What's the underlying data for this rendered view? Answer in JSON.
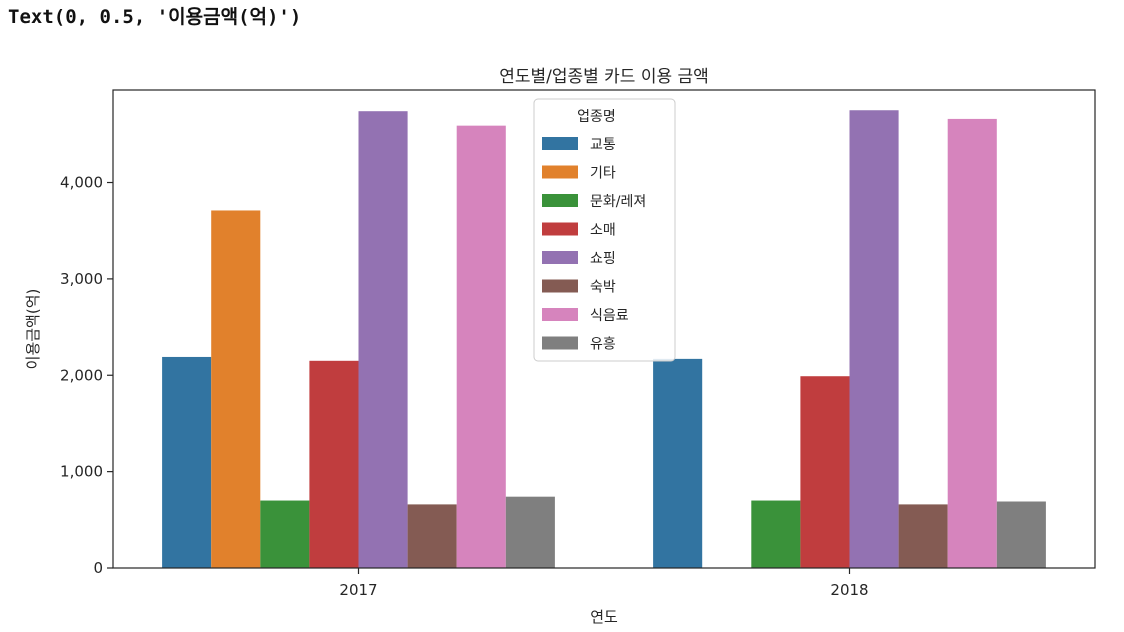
{
  "output": {
    "text": "Text(0, 0.5, '이용금액(억)')"
  },
  "chart_data": {
    "type": "bar",
    "title": "연도별/업종별 카드 이용 금액",
    "xlabel": "연도",
    "ylabel": "이용금액(억)",
    "categories": [
      "2017",
      "2018"
    ],
    "ylim": [
      0,
      4960
    ],
    "yticks": [
      0,
      1000,
      2000,
      3000,
      4000
    ],
    "ytick_labels": [
      "0",
      "1,000",
      "2,000",
      "3,000",
      "4,000"
    ],
    "legend_title": "업종명",
    "legend_position": "top-center",
    "grid": false,
    "series": [
      {
        "name": "교통",
        "color": "#3274a1",
        "values": [
          2190,
          2170
        ]
      },
      {
        "name": "기타",
        "color": "#e1812c",
        "values": [
          3710,
          null
        ]
      },
      {
        "name": "문화/레져",
        "color": "#3a923a",
        "values": [
          700,
          700
        ]
      },
      {
        "name": "소매",
        "color": "#c03d3e",
        "values": [
          2150,
          1990
        ]
      },
      {
        "name": "쇼핑",
        "color": "#9372b2",
        "values": [
          4740,
          4750
        ]
      },
      {
        "name": "숙박",
        "color": "#845b53",
        "values": [
          660,
          660
        ]
      },
      {
        "name": "식음료",
        "color": "#d684bd",
        "values": [
          4590,
          4660
        ]
      },
      {
        "name": "유흥",
        "color": "#7f7f7f",
        "values": [
          740,
          690
        ]
      }
    ]
  }
}
